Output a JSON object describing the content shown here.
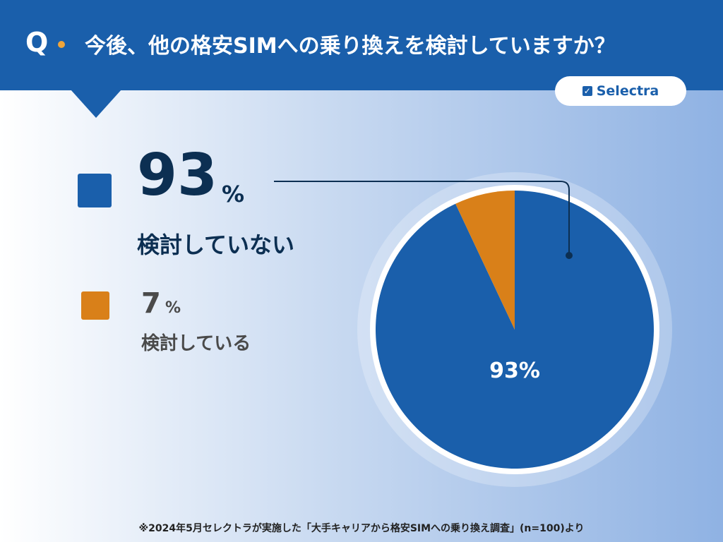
{
  "header": {
    "q_label": "Q",
    "question": "今後、他の格安SIMへの乗り換えを検討していますか？"
  },
  "brand": {
    "name": "Selectra",
    "icon": "checkbox-icon"
  },
  "legend": [
    {
      "percent": "93",
      "sign": "%",
      "label": "検討していない"
    },
    {
      "percent": "7",
      "sign": "%",
      "label": "検討している"
    }
  ],
  "colors": {
    "header": "#1a5fab",
    "not_considering": "#1a5fab",
    "considering": "#d98019"
  },
  "chart_data": {
    "type": "pie",
    "categories": [
      "検討していない",
      "検討している"
    ],
    "values": [
      93,
      7
    ],
    "units": "%",
    "data_labels": [
      "93%",
      ""
    ],
    "colors": [
      "#1a5fab",
      "#d98019"
    ]
  },
  "footnote": "※2024年5月セレクトラが実施した「大手キャリアから格安SIMへの乗り換え調査」(n=100)より"
}
